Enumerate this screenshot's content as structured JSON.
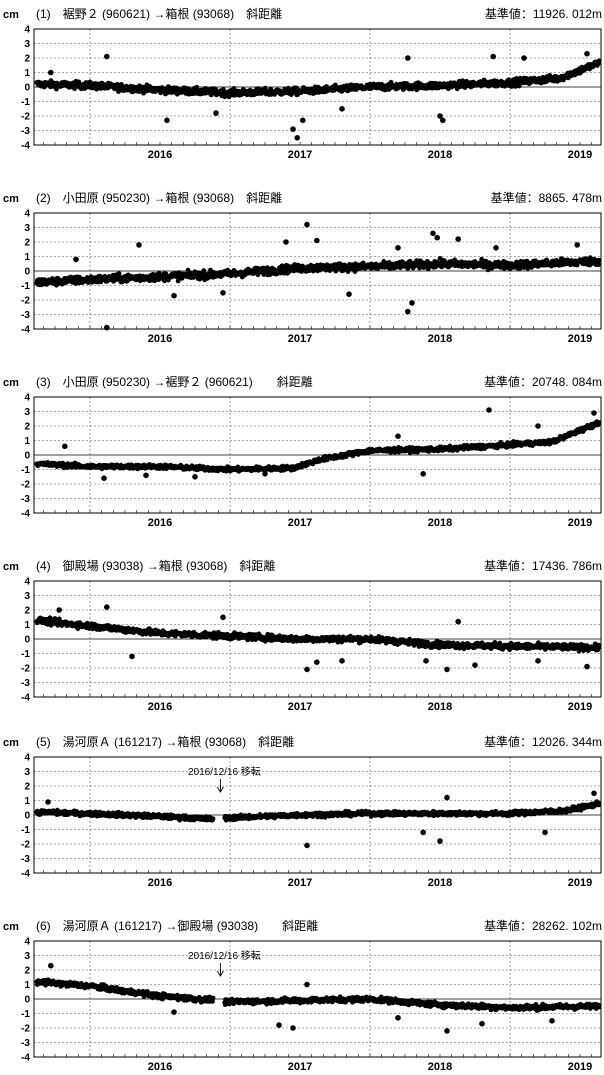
{
  "chart_data": [
    {
      "type": "scatter",
      "title": "(1)　裾野２ (960621) →箱根 (93068)　斜距離",
      "base_value": "基準値：11926. 012m",
      "ylabel": "cm",
      "ylim": [
        -4,
        4
      ],
      "yticks": [
        "4",
        "3",
        "2",
        "1",
        "0",
        "-1",
        "-2",
        "-3",
        "-4"
      ],
      "xlim": [
        2015.6,
        2019.65
      ],
      "xticks": [
        "2016",
        "2017",
        "2018",
        "2019"
      ],
      "grid": true,
      "trend": [
        [
          2015.6,
          0.2
        ],
        [
          2016.0,
          0.1
        ],
        [
          2016.5,
          -0.2
        ],
        [
          2017.0,
          -0.4
        ],
        [
          2017.5,
          -0.3
        ],
        [
          2018.0,
          0.0
        ],
        [
          2018.5,
          0.1
        ],
        [
          2019.0,
          0.3
        ],
        [
          2019.35,
          0.6
        ],
        [
          2019.65,
          1.7
        ]
      ],
      "noise": 0.4,
      "outliers": [
        [
          2015.72,
          1.0
        ],
        [
          2016.12,
          2.1
        ],
        [
          2016.55,
          -2.3
        ],
        [
          2016.9,
          -1.8
        ],
        [
          2017.45,
          -2.9
        ],
        [
          2017.48,
          -3.5
        ],
        [
          2017.52,
          -2.3
        ],
        [
          2017.8,
          -1.5
        ],
        [
          2018.27,
          2.0
        ],
        [
          2018.5,
          -2.0
        ],
        [
          2018.52,
          -2.3
        ],
        [
          2018.88,
          2.1
        ],
        [
          2019.1,
          2.0
        ],
        [
          2019.55,
          2.3
        ]
      ],
      "annotations": []
    },
    {
      "type": "scatter",
      "title": "(2)　小田原 (950230) →箱根 (93068)　斜距離",
      "base_value": "基準値：8865. 478m",
      "ylabel": "cm",
      "ylim": [
        -4,
        4
      ],
      "yticks": [
        "4",
        "3",
        "2",
        "1",
        "0",
        "-1",
        "-2",
        "-3",
        "-4"
      ],
      "xlim": [
        2015.6,
        2019.65
      ],
      "xticks": [
        "2016",
        "2017",
        "2018",
        "2019"
      ],
      "grid": true,
      "trend": [
        [
          2015.6,
          -0.8
        ],
        [
          2016.0,
          -0.6
        ],
        [
          2016.5,
          -0.4
        ],
        [
          2017.0,
          -0.2
        ],
        [
          2017.5,
          0.2
        ],
        [
          2018.0,
          0.3
        ],
        [
          2018.5,
          0.5
        ],
        [
          2019.0,
          0.4
        ],
        [
          2019.65,
          0.7
        ]
      ],
      "noise": 0.45,
      "outliers": [
        [
          2015.9,
          0.8
        ],
        [
          2016.12,
          -3.9
        ],
        [
          2016.35,
          1.8
        ],
        [
          2016.6,
          -1.7
        ],
        [
          2016.95,
          -1.5
        ],
        [
          2017.4,
          2.0
        ],
        [
          2017.55,
          3.2
        ],
        [
          2017.62,
          2.1
        ],
        [
          2017.85,
          -1.6
        ],
        [
          2018.2,
          1.6
        ],
        [
          2018.27,
          -2.8
        ],
        [
          2018.3,
          -2.2
        ],
        [
          2018.45,
          2.6
        ],
        [
          2018.48,
          2.3
        ],
        [
          2018.63,
          2.2
        ],
        [
          2018.9,
          1.6
        ],
        [
          2019.48,
          1.8
        ]
      ],
      "annotations": []
    },
    {
      "type": "scatter",
      "title": "(3)　小田原 (950230) →裾野２ (960621)　　斜距離",
      "base_value": "基準値：20748. 084m",
      "ylabel": "cm",
      "ylim": [
        -4,
        4
      ],
      "yticks": [
        "4",
        "3",
        "2",
        "1",
        "0",
        "-1",
        "-2",
        "-3",
        "-4"
      ],
      "xlim": [
        2015.6,
        2019.65
      ],
      "xticks": [
        "2016",
        "2017",
        "2018",
        "2019"
      ],
      "grid": true,
      "trend": [
        [
          2015.6,
          -0.6
        ],
        [
          2016.0,
          -0.8
        ],
        [
          2016.5,
          -0.8
        ],
        [
          2017.0,
          -1.0
        ],
        [
          2017.45,
          -0.9
        ],
        [
          2017.65,
          -0.3
        ],
        [
          2018.0,
          0.3
        ],
        [
          2018.5,
          0.4
        ],
        [
          2019.0,
          0.7
        ],
        [
          2019.3,
          0.9
        ],
        [
          2019.65,
          2.3
        ]
      ],
      "noise": 0.25,
      "outliers": [
        [
          2015.82,
          0.6
        ],
        [
          2016.1,
          -1.6
        ],
        [
          2016.4,
          -1.4
        ],
        [
          2016.75,
          -1.5
        ],
        [
          2017.25,
          -1.3
        ],
        [
          2018.2,
          1.3
        ],
        [
          2018.38,
          -1.3
        ],
        [
          2018.85,
          3.1
        ],
        [
          2019.2,
          2.0
        ],
        [
          2019.6,
          2.9
        ]
      ],
      "annotations": []
    },
    {
      "type": "scatter",
      "title": "(4)　御殿場 (93038) →箱根 (93068)　斜距離",
      "base_value": "基準値：17436. 786m",
      "ylabel": "cm",
      "ylim": [
        -4,
        4
      ],
      "yticks": [
        "4",
        "3",
        "2",
        "1",
        "0",
        "-1",
        "-2",
        "-3",
        "-4"
      ],
      "xlim": [
        2015.6,
        2019.65
      ],
      "xticks": [
        "2016",
        "2017",
        "2018",
        "2019"
      ],
      "grid": true,
      "trend": [
        [
          2015.6,
          1.3
        ],
        [
          2016.0,
          0.9
        ],
        [
          2016.5,
          0.4
        ],
        [
          2017.0,
          0.2
        ],
        [
          2017.5,
          0.0
        ],
        [
          2018.0,
          0.0
        ],
        [
          2018.5,
          -0.4
        ],
        [
          2019.0,
          -0.5
        ],
        [
          2019.65,
          -0.6
        ]
      ],
      "noise": 0.35,
      "outliers": [
        [
          2015.78,
          2.0
        ],
        [
          2016.12,
          2.2
        ],
        [
          2016.3,
          -1.2
        ],
        [
          2016.95,
          1.5
        ],
        [
          2017.55,
          -2.1
        ],
        [
          2017.62,
          -1.6
        ],
        [
          2017.8,
          -1.5
        ],
        [
          2018.4,
          -1.5
        ],
        [
          2018.55,
          -2.1
        ],
        [
          2018.63,
          1.2
        ],
        [
          2018.75,
          -1.8
        ],
        [
          2019.2,
          -1.5
        ],
        [
          2019.55,
          -1.9
        ]
      ],
      "annotations": []
    },
    {
      "type": "scatter",
      "title": "(5)　湯河原Ａ (161217) →箱根 (93068)　斜距離",
      "base_value": "基準値：12026. 344m",
      "ylabel": "cm",
      "ylim": [
        -4,
        4
      ],
      "yticks": [
        "4",
        "3",
        "2",
        "1",
        "0",
        "-1",
        "-2",
        "-3",
        "-4"
      ],
      "xlim": [
        2015.6,
        2019.65
      ],
      "xticks": [
        "2016",
        "2017",
        "2018",
        "2019"
      ],
      "grid": true,
      "gap": [
        2016.88,
        2016.96
      ],
      "trend": [
        [
          2015.6,
          0.2
        ],
        [
          2016.0,
          0.1
        ],
        [
          2016.5,
          -0.1
        ],
        [
          2016.9,
          -0.3
        ],
        [
          2016.96,
          -0.2
        ],
        [
          2017.5,
          0.0
        ],
        [
          2018.0,
          0.1
        ],
        [
          2018.5,
          0.1
        ],
        [
          2019.0,
          0.1
        ],
        [
          2019.4,
          0.3
        ],
        [
          2019.65,
          0.8
        ]
      ],
      "noise": 0.25,
      "outliers": [
        [
          2015.7,
          0.9
        ],
        [
          2017.55,
          -2.1
        ],
        [
          2018.38,
          -1.2
        ],
        [
          2018.5,
          -1.8
        ],
        [
          2018.55,
          1.2
        ],
        [
          2019.25,
          -1.2
        ],
        [
          2019.6,
          1.5
        ]
      ],
      "annotations": [
        {
          "text": "2016/12/16  移転",
          "x": 2016.96
        }
      ]
    },
    {
      "type": "scatter",
      "title": "(6)　湯河原Ａ (161217) →御殿場 (93038)　　斜距離",
      "base_value": "基準値：28262. 102m",
      "ylabel": "cm",
      "ylim": [
        -4,
        4
      ],
      "yticks": [
        "4",
        "3",
        "2",
        "1",
        "0",
        "-1",
        "-2",
        "-3",
        "-4"
      ],
      "xlim": [
        2015.6,
        2019.65
      ],
      "xticks": [
        "2016",
        "2017",
        "2018",
        "2019"
      ],
      "grid": true,
      "gap": [
        2016.88,
        2016.96
      ],
      "trend": [
        [
          2015.6,
          1.2
        ],
        [
          2016.0,
          0.9
        ],
        [
          2016.5,
          0.2
        ],
        [
          2016.9,
          -0.1
        ],
        [
          2016.96,
          -0.2
        ],
        [
          2017.5,
          -0.1
        ],
        [
          2018.0,
          0.0
        ],
        [
          2018.5,
          -0.4
        ],
        [
          2019.0,
          -0.6
        ],
        [
          2019.65,
          -0.5
        ]
      ],
      "noise": 0.3,
      "outliers": [
        [
          2015.72,
          2.3
        ],
        [
          2016.6,
          -0.9
        ],
        [
          2017.35,
          -1.8
        ],
        [
          2017.45,
          -2.0
        ],
        [
          2017.55,
          1.0
        ],
        [
          2018.2,
          -1.3
        ],
        [
          2018.55,
          -2.2
        ],
        [
          2018.8,
          -1.7
        ],
        [
          2019.3,
          -1.5
        ]
      ],
      "annotations": [
        {
          "text": "2016/12/16  移転",
          "x": 2016.96
        }
      ]
    }
  ]
}
